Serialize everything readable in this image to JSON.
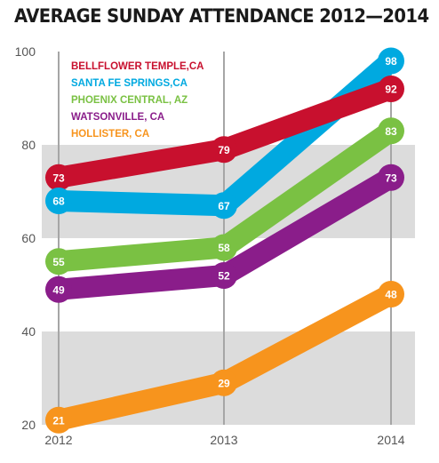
{
  "chart_data": {
    "type": "line",
    "title": "AVERAGE SUNDAY ATTENDANCE 2012—2014",
    "x": [
      "2012",
      "2013",
      "2014"
    ],
    "ylim": [
      20,
      100
    ],
    "yticks": [
      20,
      40,
      60,
      80,
      100
    ],
    "grid": true,
    "legend": "top-left",
    "series": [
      {
        "name": "BELLFLOWER TEMPLE,CA",
        "color": "#c8102e",
        "values": [
          73,
          79,
          92
        ]
      },
      {
        "name": "SANTA FE SPRINGS,CA",
        "color": "#00a9e0",
        "values": [
          68,
          67,
          98
        ]
      },
      {
        "name": "PHOENIX CENTRAL, AZ",
        "color": "#7ac143",
        "values": [
          55,
          58,
          83
        ]
      },
      {
        "name": "WATSONVILLE, CA",
        "color": "#8a1d8a",
        "values": [
          49,
          52,
          73
        ]
      },
      {
        "name": "HOLLISTER, CA",
        "color": "#f7941d",
        "values": [
          21,
          29,
          48
        ]
      }
    ]
  }
}
